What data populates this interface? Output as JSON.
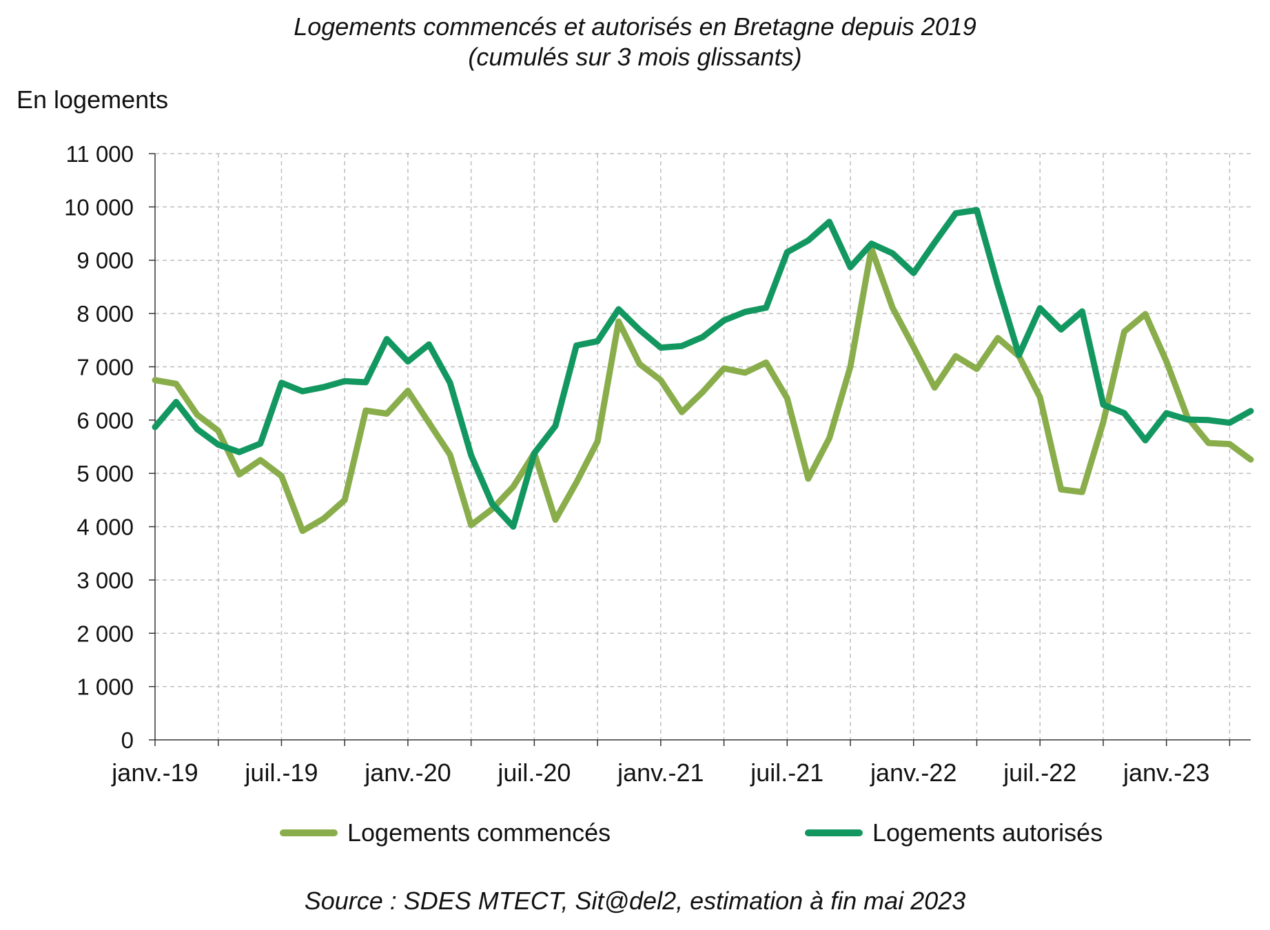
{
  "chart_data": {
    "type": "line",
    "title": "Logements commencés et autorisés en Bretagne depuis 2019",
    "subtitle": "(cumulés sur 3 mois glissants)",
    "ylabel": "En logements",
    "ylim": [
      0,
      11000
    ],
    "yticks": [
      0,
      1000,
      2000,
      3000,
      4000,
      5000,
      6000,
      7000,
      8000,
      9000,
      10000,
      11000
    ],
    "ytick_labels": [
      "0",
      "1 000",
      "2 000",
      "3 000",
      "4 000",
      "5 000",
      "6 000",
      "7 000",
      "8 000",
      "9 000",
      "10 000",
      "11 000"
    ],
    "x": [
      "2019-01",
      "2019-02",
      "2019-03",
      "2019-04",
      "2019-05",
      "2019-06",
      "2019-07",
      "2019-08",
      "2019-09",
      "2019-10",
      "2019-11",
      "2019-12",
      "2020-01",
      "2020-02",
      "2020-03",
      "2020-04",
      "2020-05",
      "2020-06",
      "2020-07",
      "2020-08",
      "2020-09",
      "2020-10",
      "2020-11",
      "2020-12",
      "2021-01",
      "2021-02",
      "2021-03",
      "2021-04",
      "2021-05",
      "2021-06",
      "2021-07",
      "2021-08",
      "2021-09",
      "2021-10",
      "2021-11",
      "2021-12",
      "2022-01",
      "2022-02",
      "2022-03",
      "2022-04",
      "2022-05",
      "2022-06",
      "2022-07",
      "2022-08",
      "2022-09",
      "2022-10",
      "2022-11",
      "2022-12",
      "2023-01",
      "2023-02",
      "2023-03",
      "2023-04",
      "2023-05"
    ],
    "xtick_labels": [
      "janv.-19",
      "juil.-19",
      "janv.-20",
      "juil.-20",
      "janv.-21",
      "juil.-21",
      "janv.-22",
      "juil.-22",
      "janv.-23"
    ],
    "xtick_index": [
      0,
      6,
      12,
      18,
      24,
      30,
      36,
      42,
      48
    ],
    "grid": true,
    "legend_position": "bottom",
    "series": [
      {
        "name": "Logements commencés",
        "color": "#8aad4c",
        "values": [
          6750,
          6680,
          6100,
          5800,
          4980,
          5250,
          4950,
          3920,
          4150,
          4500,
          6180,
          6120,
          6550,
          5950,
          5350,
          4030,
          4330,
          4750,
          5380,
          4130,
          4830,
          5600,
          7850,
          7050,
          6750,
          6150,
          6530,
          6970,
          6890,
          7080,
          6410,
          4900,
          5660,
          7000,
          9220,
          8110,
          7370,
          6610,
          7200,
          6960,
          7540,
          7200,
          6430,
          4700,
          4650,
          5960,
          7660,
          7990,
          7100,
          6050,
          5570,
          5550,
          5260
        ]
      },
      {
        "name": "Logements autorisés",
        "color": "#139760",
        "values": [
          5870,
          6340,
          5830,
          5540,
          5400,
          5560,
          6700,
          6540,
          6620,
          6730,
          6710,
          7520,
          7100,
          7420,
          6700,
          5340,
          4430,
          4000,
          5380,
          5890,
          7400,
          7480,
          8080,
          7690,
          7360,
          7390,
          7560,
          7870,
          8030,
          8110,
          9150,
          9370,
          9720,
          8870,
          9310,
          9130,
          8760,
          9330,
          9880,
          9940,
          8530,
          7220,
          8100,
          7700,
          8040,
          6290,
          6130,
          5620,
          6130,
          6010,
          6000,
          5950,
          6170
        ]
      }
    ]
  }
}
